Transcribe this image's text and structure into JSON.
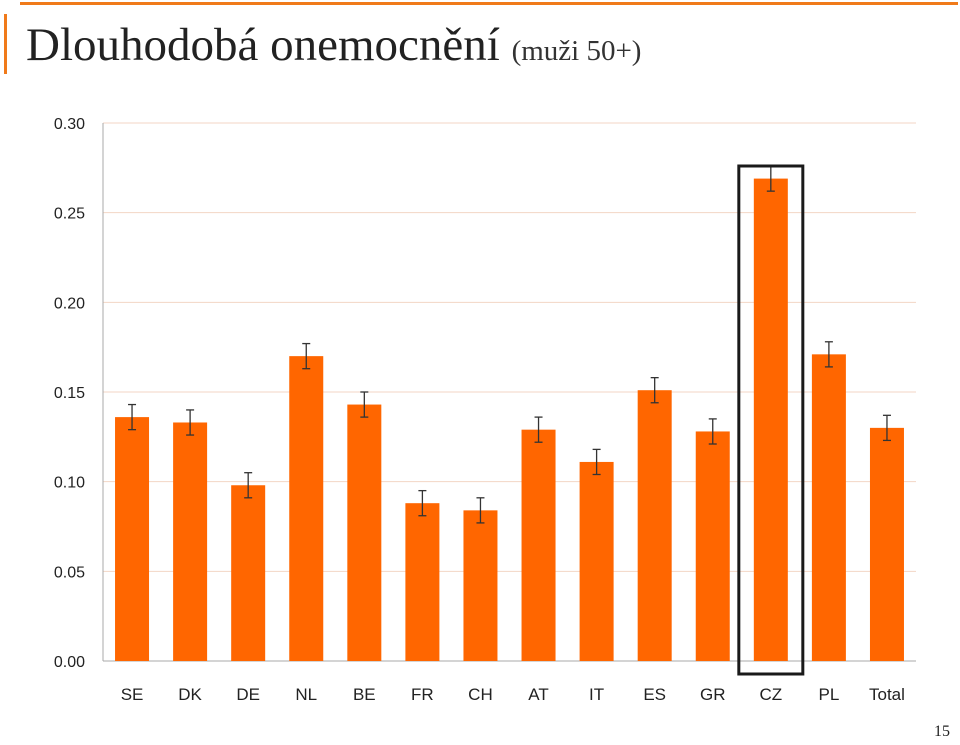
{
  "slide": {
    "title": "Dlouhodobá onemocnění",
    "subtitle": "(muži 50+)",
    "page_number": "15"
  },
  "colors": {
    "bar": "#ff6600",
    "accent": "#f07a1a",
    "gridline": "#f3d6c5",
    "error_bar": "#333333",
    "highlight_box": "#1a1a1a"
  },
  "chart_data": {
    "type": "bar",
    "categories": [
      "SE",
      "DK",
      "DE",
      "NL",
      "BE",
      "FR",
      "CH",
      "AT",
      "IT",
      "ES",
      "GR",
      "CZ",
      "PL",
      "Total"
    ],
    "values": [
      0.136,
      0.133,
      0.098,
      0.17,
      0.143,
      0.088,
      0.084,
      0.129,
      0.111,
      0.151,
      0.128,
      0.269,
      0.171,
      0.13
    ],
    "error_low": [
      0.129,
      0.126,
      0.091,
      0.163,
      0.136,
      0.081,
      0.077,
      0.122,
      0.104,
      0.144,
      0.121,
      0.262,
      0.164,
      0.123
    ],
    "error_high": [
      0.143,
      0.14,
      0.105,
      0.177,
      0.15,
      0.095,
      0.091,
      0.136,
      0.118,
      0.158,
      0.135,
      0.276,
      0.178,
      0.137
    ],
    "ylim": [
      0,
      0.3
    ],
    "yticks": [
      "0.00",
      "0.05",
      "0.10",
      "0.15",
      "0.20",
      "0.25",
      "0.30"
    ],
    "grid": true,
    "legend": "none",
    "highlighted_category": "CZ"
  }
}
